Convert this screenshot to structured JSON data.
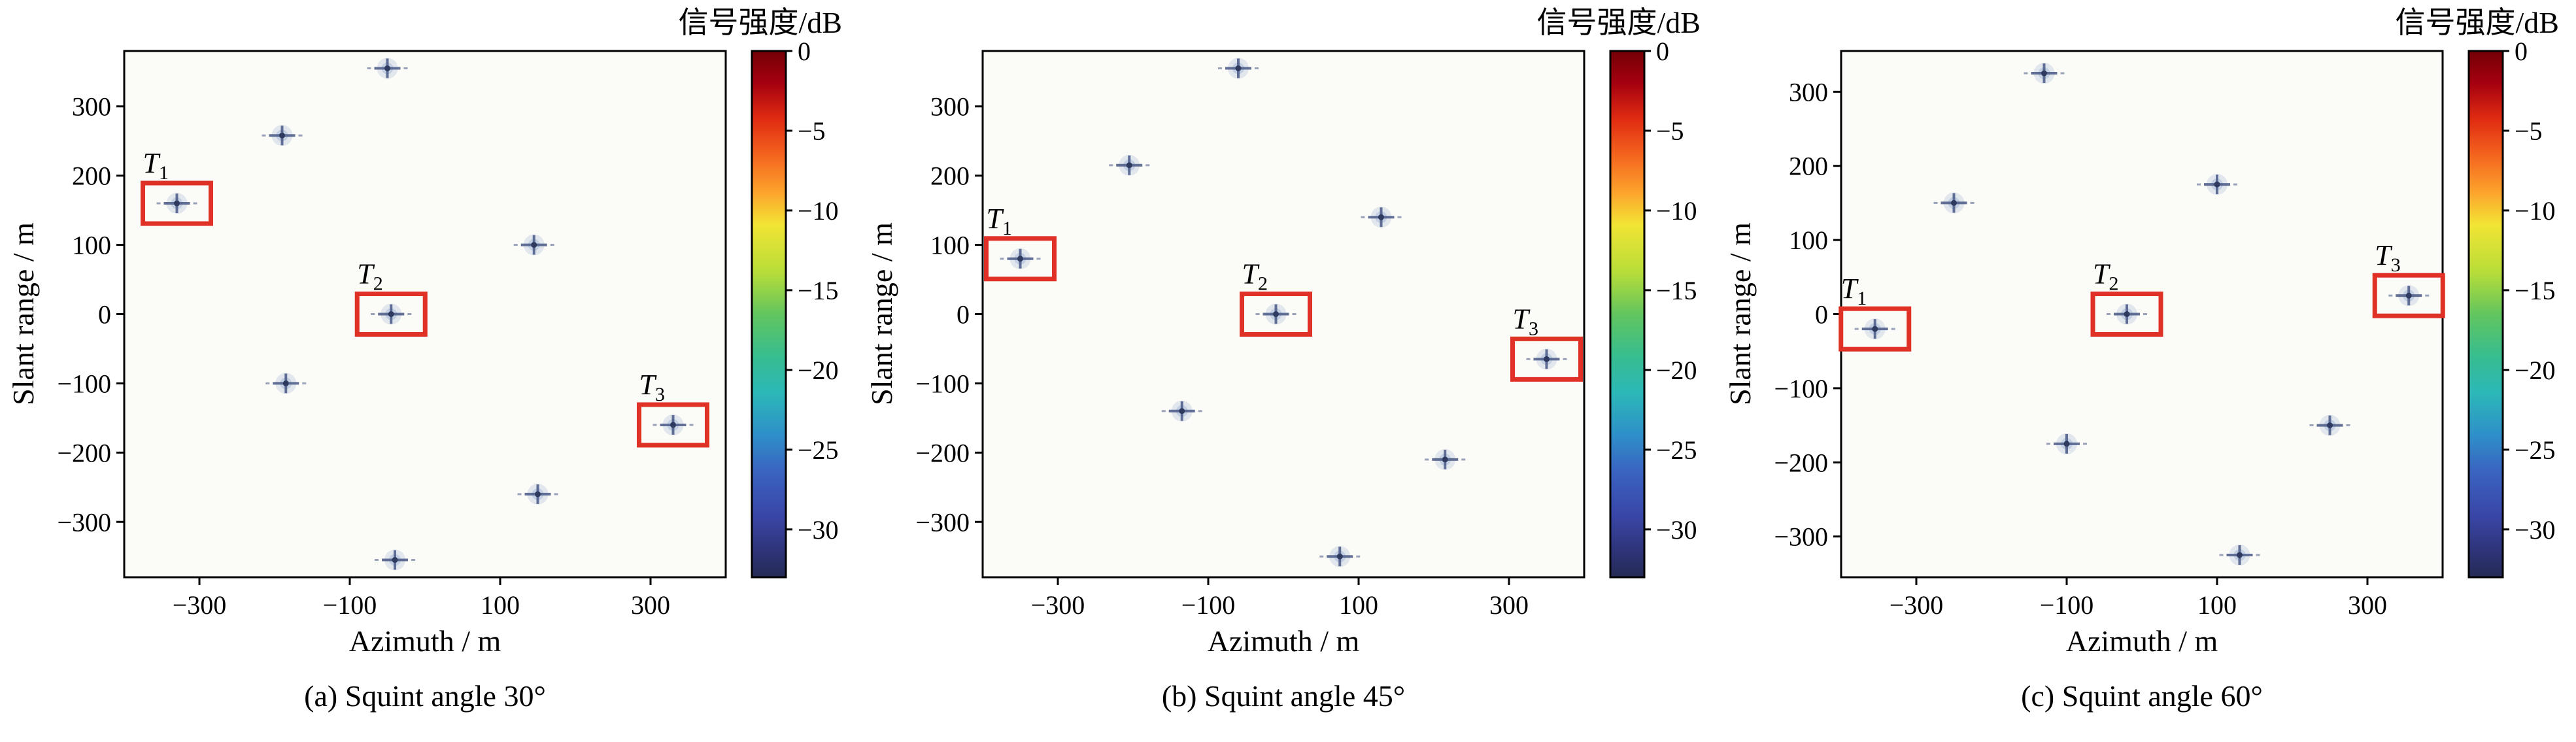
{
  "figure": {
    "colorbar_title": "信号强度/dB",
    "colorbar": {
      "vmax": 0,
      "vmin": -33,
      "ticks": [
        0,
        -5,
        -10,
        -15,
        -20,
        -25,
        -30
      ],
      "stops": [
        {
          "o": 0.0,
          "c": "#730005"
        },
        {
          "o": 0.06,
          "c": "#a50010"
        },
        {
          "o": 0.13,
          "c": "#e02c12"
        },
        {
          "o": 0.2,
          "c": "#f4661e"
        },
        {
          "o": 0.27,
          "c": "#fca52c"
        },
        {
          "o": 0.33,
          "c": "#f2e434"
        },
        {
          "o": 0.42,
          "c": "#b8dd38"
        },
        {
          "o": 0.5,
          "c": "#62c55e"
        },
        {
          "o": 0.58,
          "c": "#37bd8f"
        },
        {
          "o": 0.65,
          "c": "#2cb8b8"
        },
        {
          "o": 0.73,
          "c": "#2e8fc9"
        },
        {
          "o": 0.8,
          "c": "#3a63c0"
        },
        {
          "o": 0.88,
          "c": "#3a47a8"
        },
        {
          "o": 0.95,
          "c": "#2e3478"
        },
        {
          "o": 1.0,
          "c": "#252a55"
        }
      ]
    },
    "palette": {
      "frame": "#000000",
      "plot_bg": "#fbfbf7",
      "marker_core": "#4a5a86",
      "marker_dot": "#2f3a60",
      "marker_halo": "#9fb2d4",
      "target_box": "#e03127"
    }
  },
  "chart_data": [
    {
      "type": "scatter",
      "caption": "(a) Squint angle 30°",
      "xlabel": "Azimuth / m",
      "ylabel": "Slant range / m",
      "xlim": [
        -400,
        400
      ],
      "ylim": [
        -380,
        380
      ],
      "xticks": [
        -300,
        -100,
        100,
        300
      ],
      "yticks": [
        -300,
        -200,
        -100,
        0,
        100,
        200,
        300
      ],
      "points": [
        {
          "x": -330,
          "y": 160
        },
        {
          "x": -190,
          "y": 258
        },
        {
          "x": -50,
          "y": 355
        },
        {
          "x": 145,
          "y": 100
        },
        {
          "x": -45,
          "y": 0
        },
        {
          "x": -185,
          "y": -100
        },
        {
          "x": 150,
          "y": -260
        },
        {
          "x": -40,
          "y": -355
        },
        {
          "x": 330,
          "y": -160
        }
      ],
      "targets": [
        {
          "label": "T",
          "sub": "1",
          "x": -330,
          "y": 160
        },
        {
          "label": "T",
          "sub": "2",
          "x": -45,
          "y": 0
        },
        {
          "label": "T",
          "sub": "3",
          "x": 330,
          "y": -160
        }
      ]
    },
    {
      "type": "scatter",
      "caption": "(b) Squint angle 45°",
      "xlabel": "Azimuth / m",
      "ylabel": "Slant range / m",
      "xlim": [
        -400,
        400
      ],
      "ylim": [
        -380,
        380
      ],
      "xticks": [
        -300,
        -100,
        100,
        300
      ],
      "yticks": [
        -300,
        -200,
        -100,
        0,
        100,
        200,
        300
      ],
      "points": [
        {
          "x": -350,
          "y": 80
        },
        {
          "x": -205,
          "y": 215
        },
        {
          "x": -60,
          "y": 355
        },
        {
          "x": 130,
          "y": 140
        },
        {
          "x": -10,
          "y": 0
        },
        {
          "x": -135,
          "y": -140
        },
        {
          "x": 215,
          "y": -210
        },
        {
          "x": 75,
          "y": -350
        },
        {
          "x": 350,
          "y": -65
        }
      ],
      "targets": [
        {
          "label": "T",
          "sub": "1",
          "x": -350,
          "y": 80
        },
        {
          "label": "T",
          "sub": "2",
          "x": -10,
          "y": 0
        },
        {
          "label": "T",
          "sub": "3",
          "x": 350,
          "y": -65
        }
      ]
    },
    {
      "type": "scatter",
      "caption": "(c) Squint angle 60°",
      "xlabel": "Azimuth / m",
      "ylabel": "Slant range / m",
      "xlim": [
        -400,
        400
      ],
      "ylim": [
        -355,
        355
      ],
      "xticks": [
        -300,
        -100,
        100,
        300
      ],
      "yticks": [
        -300,
        -200,
        -100,
        0,
        100,
        200,
        300
      ],
      "points": [
        {
          "x": -355,
          "y": -20
        },
        {
          "x": -250,
          "y": 150
        },
        {
          "x": -130,
          "y": 325
        },
        {
          "x": 100,
          "y": 175
        },
        {
          "x": -20,
          "y": 0
        },
        {
          "x": -100,
          "y": -175
        },
        {
          "x": 250,
          "y": -150
        },
        {
          "x": 130,
          "y": -325
        },
        {
          "x": 355,
          "y": 25
        }
      ],
      "targets": [
        {
          "label": "T",
          "sub": "1",
          "x": -355,
          "y": -20
        },
        {
          "label": "T",
          "sub": "2",
          "x": -20,
          "y": 0
        },
        {
          "label": "T",
          "sub": "3",
          "x": 355,
          "y": 25
        }
      ]
    }
  ]
}
